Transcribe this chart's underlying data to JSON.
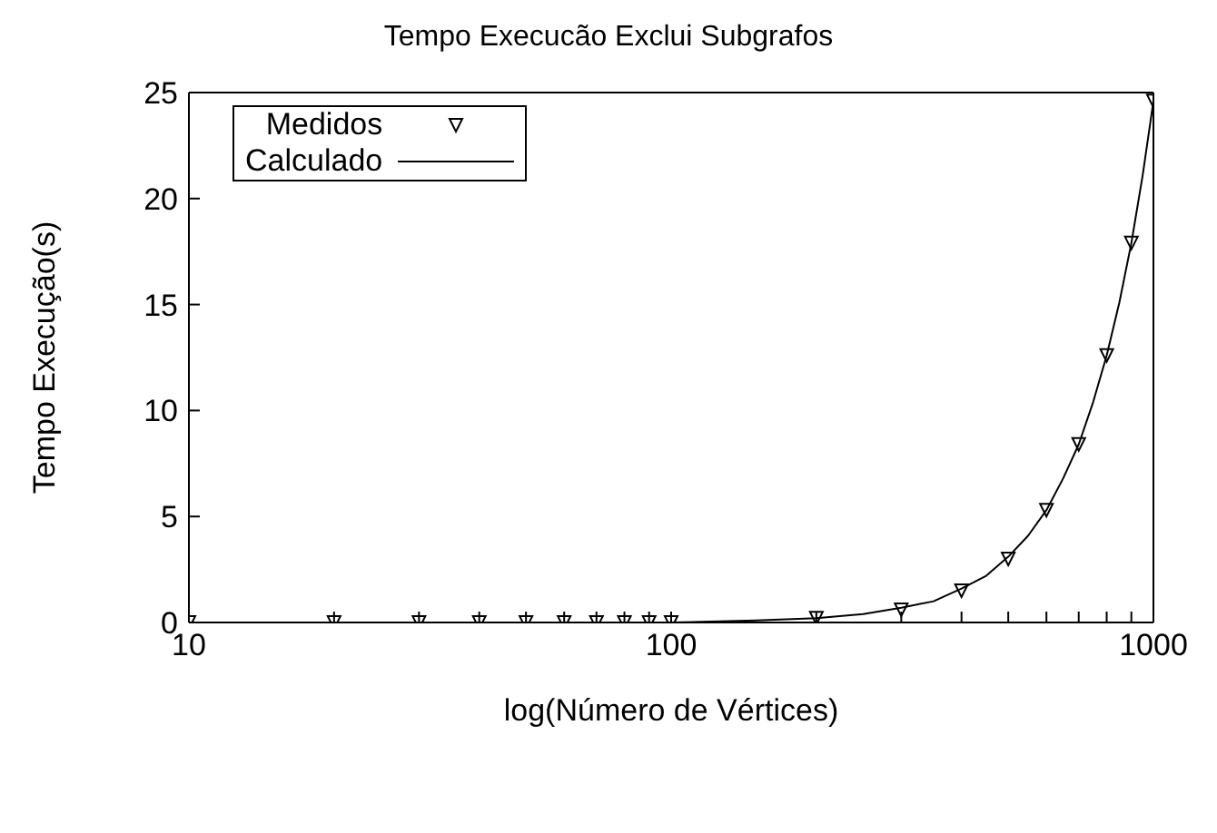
{
  "chart_data": {
    "type": "scatter",
    "title": "Tempo Execucão Exclui Subgrafos",
    "xlabel": "log(Número de Vértices)",
    "ylabel": "Tempo Execução(s)",
    "log": "x",
    "xlim": [
      10,
      1000
    ],
    "xticks": [
      10,
      {
        "value": 20,
        "label": null
      },
      {
        "value": 30,
        "label": null
      },
      {
        "value": 40,
        "label": null
      },
      {
        "value": 50,
        "label": null
      },
      {
        "value": 60,
        "label": null
      },
      {
        "value": 70,
        "label": null
      },
      {
        "value": 80,
        "label": null
      },
      {
        "value": 90,
        "label": null
      },
      100,
      {
        "value": 200,
        "label": null
      },
      {
        "value": 300,
        "label": null
      },
      {
        "value": 400,
        "label": null
      },
      {
        "value": 500,
        "label": null
      },
      {
        "value": 600,
        "label": null
      },
      {
        "value": 700,
        "label": null
      },
      {
        "value": 800,
        "label": null
      },
      {
        "value": 900,
        "label": null
      },
      1000
    ],
    "ylim": [
      0,
      25
    ],
    "yticks": [
      0,
      5,
      10,
      15,
      20,
      25
    ],
    "grid": false,
    "legend": "top left",
    "series": [
      {
        "name": "Medidos",
        "marker": "triangle",
        "color": "#000000",
        "x": [
          10,
          20,
          30,
          40,
          50,
          60,
          70,
          80,
          90,
          100,
          200,
          300,
          400,
          500,
          600,
          700,
          800,
          900,
          1000
        ],
        "values": [
          0,
          0,
          0,
          0,
          0,
          0,
          0,
          0,
          0,
          0,
          0.2,
          0.6,
          1.5,
          3,
          5.3,
          8.4,
          12.6,
          17.9,
          24.6
        ]
      },
      {
        "name": "Calculado",
        "type": "line",
        "marker": "none",
        "line_style": "solid",
        "color": "#000000",
        "x": [
          10,
          50,
          100,
          150,
          200,
          250,
          300,
          350,
          400,
          450,
          500,
          550,
          600,
          650,
          700,
          750,
          800,
          850,
          900,
          950,
          1000
        ],
        "values": [
          0,
          0,
          0,
          0.1,
          0.2,
          0.4,
          0.7,
          1,
          1.6,
          2.2,
          3.1,
          4.1,
          5.3,
          6.8,
          8.4,
          10.4,
          12.6,
          15.1,
          17.9,
          21.1,
          24.6
        ]
      }
    ]
  }
}
